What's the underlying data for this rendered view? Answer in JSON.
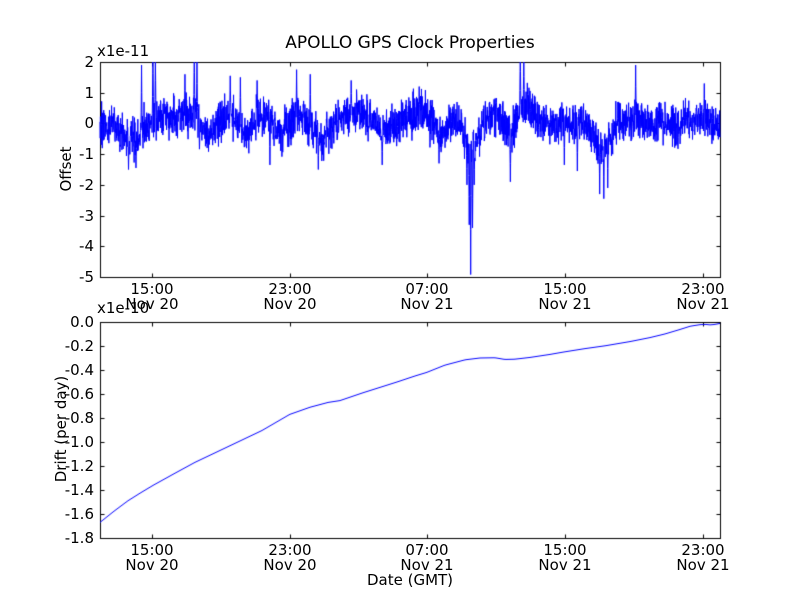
{
  "figure": {
    "title": "APOLLO GPS Clock Properties",
    "background": "#ffffff",
    "line_color": "#0000ff",
    "axis_color": "#000000"
  },
  "chart_data": [
    {
      "type": "line",
      "subplot": "top",
      "title": "APOLLO GPS Clock Properties",
      "ylabel": "Offset",
      "offset_text": "x1e-11",
      "ylim": [
        -5,
        2
      ],
      "yticks": [
        "2",
        "1",
        "0",
        "-1",
        "-2",
        "-3",
        "-4",
        "-5"
      ],
      "xticks": [
        {
          "time": "15:00",
          "date": "Nov 20",
          "frac": 0.0839
        },
        {
          "time": "23:00",
          "date": "Nov 20",
          "frac": 0.3061
        },
        {
          "time": "07:00",
          "date": "Nov 21",
          "frac": 0.5282
        },
        {
          "time": "15:00",
          "date": "Nov 21",
          "frac": 0.7504
        },
        {
          "time": "23:00",
          "date": "Nov 21",
          "frac": 0.9726
        }
      ],
      "grid": false,
      "legend": "none",
      "description": "High-rate clock offset noise, mean near 0 x1e-11, band about +/-1, upward spikes clipped at +2, large negative spike to -4.9 near 09:30 Nov 21",
      "noise": {
        "seed": 20,
        "n": 3000,
        "std": 0.32
      },
      "baseline": [
        [
          0.0,
          -0.1
        ],
        [
          0.025,
          -0.12
        ],
        [
          0.042,
          -0.45
        ],
        [
          0.058,
          -0.55
        ],
        [
          0.07,
          -0.25
        ],
        [
          0.086,
          0.15
        ],
        [
          0.105,
          0.3
        ],
        [
          0.13,
          0.22
        ],
        [
          0.148,
          0.32
        ],
        [
          0.163,
          -0.05
        ],
        [
          0.176,
          -0.38
        ],
        [
          0.192,
          0.12
        ],
        [
          0.21,
          0.32
        ],
        [
          0.224,
          -0.08
        ],
        [
          0.237,
          -0.32
        ],
        [
          0.254,
          0.22
        ],
        [
          0.268,
          0.32
        ],
        [
          0.282,
          -0.1
        ],
        [
          0.293,
          -0.38
        ],
        [
          0.31,
          0.12
        ],
        [
          0.328,
          0.25
        ],
        [
          0.348,
          -0.28
        ],
        [
          0.36,
          -0.48
        ],
        [
          0.378,
          -0.08
        ],
        [
          0.398,
          0.28
        ],
        [
          0.42,
          0.45
        ],
        [
          0.438,
          0.12
        ],
        [
          0.455,
          -0.28
        ],
        [
          0.472,
          -0.05
        ],
        [
          0.49,
          0.12
        ],
        [
          0.508,
          0.32
        ],
        [
          0.522,
          0.42
        ],
        [
          0.538,
          -0.02
        ],
        [
          0.552,
          -0.3
        ],
        [
          0.566,
          -0.05
        ],
        [
          0.58,
          0.02
        ],
        [
          0.592,
          -0.65
        ],
        [
          0.598,
          -1.25
        ],
        [
          0.606,
          -0.55
        ],
        [
          0.62,
          0.02
        ],
        [
          0.636,
          0.35
        ],
        [
          0.65,
          0.1
        ],
        [
          0.662,
          -0.4
        ],
        [
          0.672,
          0.22
        ],
        [
          0.684,
          0.7
        ],
        [
          0.697,
          0.42
        ],
        [
          0.712,
          0.05
        ],
        [
          0.73,
          -0.05
        ],
        [
          0.747,
          0.1
        ],
        [
          0.762,
          -0.18
        ],
        [
          0.777,
          0.05
        ],
        [
          0.793,
          -0.35
        ],
        [
          0.807,
          -0.68
        ],
        [
          0.82,
          -0.52
        ],
        [
          0.834,
          -0.02
        ],
        [
          0.852,
          0.1
        ],
        [
          0.869,
          0.15
        ],
        [
          0.886,
          -0.05
        ],
        [
          0.906,
          0.1
        ],
        [
          0.926,
          -0.05
        ],
        [
          0.946,
          0.06
        ],
        [
          0.966,
          0.1
        ],
        [
          0.983,
          0.02
        ],
        [
          1.0,
          -0.1
        ]
      ],
      "spikes": [
        [
          0.046,
          -1.5
        ],
        [
          0.058,
          -1.45
        ],
        [
          0.067,
          1.9
        ],
        [
          0.0855,
          2.6
        ],
        [
          0.0895,
          2.2
        ],
        [
          0.137,
          1.6
        ],
        [
          0.152,
          2.6
        ],
        [
          0.1565,
          2.1
        ],
        [
          0.21,
          1.55
        ],
        [
          0.2265,
          1.5
        ],
        [
          0.2535,
          1.4
        ],
        [
          0.274,
          -1.35
        ],
        [
          0.317,
          1.75
        ],
        [
          0.339,
          1.6
        ],
        [
          0.352,
          -1.5
        ],
        [
          0.405,
          1.4
        ],
        [
          0.455,
          -1.35
        ],
        [
          0.515,
          1.2
        ],
        [
          0.547,
          -1.3
        ],
        [
          0.592,
          -2.0
        ],
        [
          0.5955,
          -3.3
        ],
        [
          0.598,
          -4.92
        ],
        [
          0.601,
          -3.4
        ],
        [
          0.6035,
          -2.0
        ],
        [
          0.662,
          -1.9
        ],
        [
          0.678,
          2.5
        ],
        [
          0.6835,
          2.1
        ],
        [
          0.749,
          -1.35
        ],
        [
          0.77,
          -1.55
        ],
        [
          0.806,
          -2.3
        ],
        [
          0.8125,
          -2.45
        ],
        [
          0.819,
          -2.1
        ],
        [
          0.864,
          1.9
        ],
        [
          0.9745,
          1.3
        ]
      ]
    },
    {
      "type": "line",
      "subplot": "bottom",
      "ylabel": "Drift (per day)",
      "xlabel": "Date (GMT)",
      "offset_text": "x1e-10",
      "ylim": [
        -1.8,
        0.0
      ],
      "yticks": [
        "0.0",
        "-0.2",
        "-0.4",
        "-0.6",
        "-0.8",
        "-1.0",
        "-1.2",
        "-1.4",
        "-1.6",
        "-1.8"
      ],
      "xticks": [
        {
          "time": "15:00",
          "date": "Nov 20",
          "frac": 0.0839
        },
        {
          "time": "23:00",
          "date": "Nov 20",
          "frac": 0.3061
        },
        {
          "time": "07:00",
          "date": "Nov 21",
          "frac": 0.5282
        },
        {
          "time": "15:00",
          "date": "Nov 21",
          "frac": 0.7504
        },
        {
          "time": "23:00",
          "date": "Nov 21",
          "frac": 0.9726
        }
      ],
      "grid": false,
      "legend": "none",
      "description": "Smooth clock drift curve rising from -1.67 x1e-10 at ~12:00 Nov 20 toward ~0 at ~24:00 Nov 21, with small shoulder near -0.67 and local flat spot near -0.30",
      "points": [
        [
          0.0,
          -1.67
        ],
        [
          0.023,
          -1.575
        ],
        [
          0.045,
          -1.49
        ],
        [
          0.065,
          -1.425
        ],
        [
          0.086,
          -1.36
        ],
        [
          0.121,
          -1.26
        ],
        [
          0.153,
          -1.17
        ],
        [
          0.206,
          -1.04
        ],
        [
          0.261,
          -0.905
        ],
        [
          0.306,
          -0.77
        ],
        [
          0.339,
          -0.71
        ],
        [
          0.368,
          -0.67
        ],
        [
          0.387,
          -0.655
        ],
        [
          0.424,
          -0.59
        ],
        [
          0.479,
          -0.5
        ],
        [
          0.508,
          -0.45
        ],
        [
          0.527,
          -0.42
        ],
        [
          0.556,
          -0.36
        ],
        [
          0.589,
          -0.315
        ],
        [
          0.613,
          -0.3
        ],
        [
          0.637,
          -0.298
        ],
        [
          0.653,
          -0.312
        ],
        [
          0.669,
          -0.31
        ],
        [
          0.694,
          -0.295
        ],
        [
          0.726,
          -0.27
        ],
        [
          0.748,
          -0.25
        ],
        [
          0.782,
          -0.222
        ],
        [
          0.815,
          -0.198
        ],
        [
          0.855,
          -0.163
        ],
        [
          0.887,
          -0.13
        ],
        [
          0.911,
          -0.1
        ],
        [
          0.935,
          -0.063
        ],
        [
          0.952,
          -0.035
        ],
        [
          0.968,
          -0.022
        ],
        [
          0.977,
          -0.02
        ],
        [
          0.984,
          -0.024
        ],
        [
          0.992,
          -0.02
        ],
        [
          1.0,
          -0.012
        ]
      ]
    }
  ]
}
